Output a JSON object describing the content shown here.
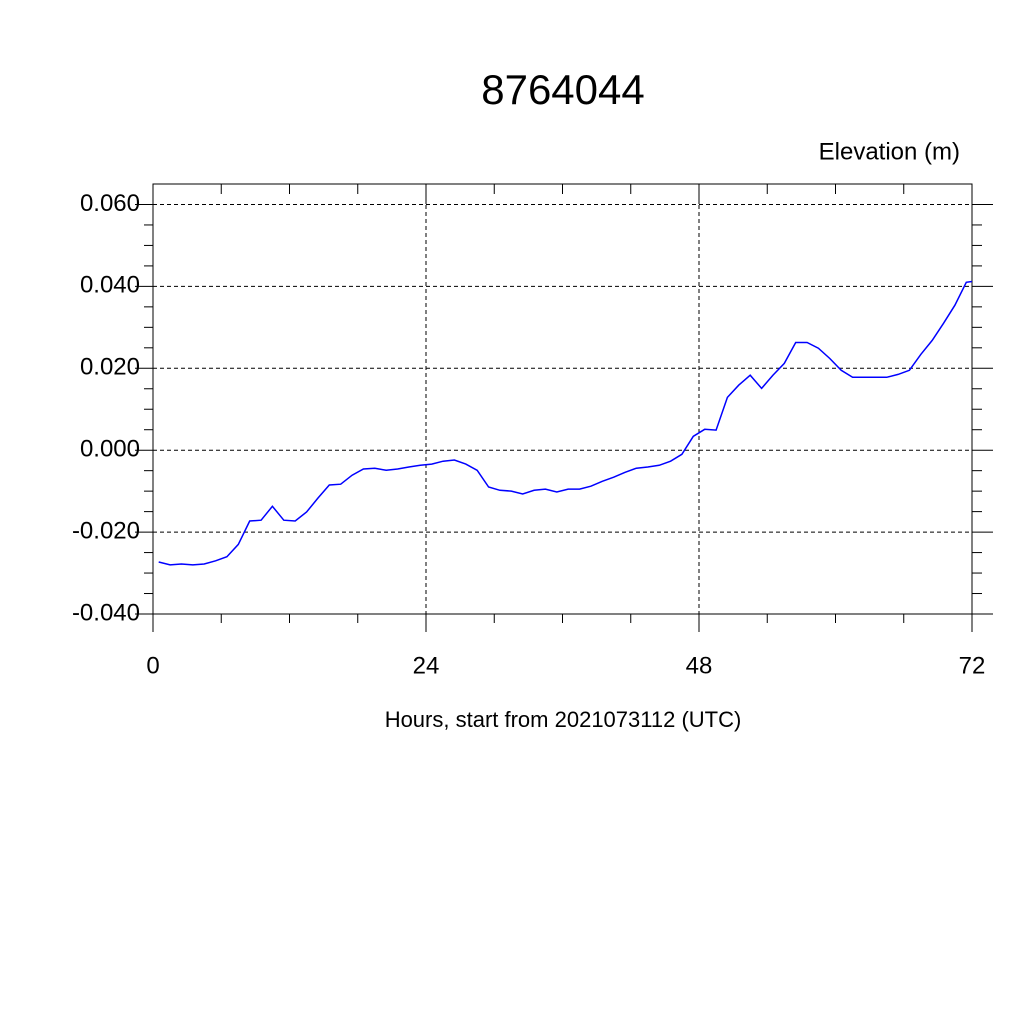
{
  "chart_data": {
    "type": "line",
    "title": "8764044",
    "y_label": "Elevation (m)",
    "x_label": "Hours, start from 2021073112 (UTC)",
    "x": [
      0.5,
      1.5,
      2.5,
      3.5,
      4.5,
      5.5,
      6.5,
      7.5,
      8.5,
      9.5,
      10.5,
      11.5,
      12.5,
      13.5,
      14.5,
      15.5,
      16.5,
      17.5,
      18.5,
      19.5,
      20.5,
      21.5,
      22.5,
      23.5,
      24.5,
      25.5,
      26.5,
      27.5,
      28.5,
      29.5,
      30.5,
      31.5,
      32.5,
      33.5,
      34.5,
      35.5,
      36.5,
      37.5,
      38.5,
      39.5,
      40.5,
      41.5,
      42.5,
      43.5,
      44.5,
      45.5,
      46.5,
      47.5,
      48.5,
      49.5,
      50.5,
      51.5,
      52.5,
      53.5,
      54.5,
      55.5,
      56.5,
      57.5,
      58.5,
      59.5,
      60.5,
      61.5,
      62.5,
      63.5,
      64.5,
      65.5,
      66.5,
      67.5,
      68.5,
      69.5,
      70.5,
      71.5,
      72
    ],
    "series": [
      {
        "name": "Elevation",
        "color": "#0000ff",
        "values": [
          -0.0273,
          -0.028,
          -0.0278,
          -0.028,
          -0.0278,
          -0.027,
          -0.026,
          -0.023,
          -0.0173,
          -0.0171,
          -0.0137,
          -0.0171,
          -0.0173,
          -0.0151,
          -0.0117,
          -0.0085,
          -0.0083,
          -0.0061,
          -0.0046,
          -0.0044,
          -0.0049,
          -0.0046,
          -0.0041,
          -0.0037,
          -0.0034,
          -0.0027,
          -0.0024,
          -0.0034,
          -0.0049,
          -0.009,
          -0.0098,
          -0.01,
          -0.0107,
          -0.0098,
          -0.0095,
          -0.0102,
          -0.0095,
          -0.0095,
          -0.0088,
          -0.0076,
          -0.0066,
          -0.0054,
          -0.0044,
          -0.0041,
          -0.0037,
          -0.0027,
          -0.001,
          0.0034,
          0.0051,
          0.0049,
          0.0129,
          0.0159,
          0.0183,
          0.0151,
          0.0183,
          0.0212,
          0.0263,
          0.0263,
          0.0249,
          0.0224,
          0.0195,
          0.0178,
          0.0178,
          0.0178,
          0.0178,
          0.0185,
          0.0195,
          0.0234,
          0.0268,
          0.031,
          0.0354,
          0.041,
          0.0412
        ]
      }
    ],
    "xlim": [
      0,
      72
    ],
    "ylim": [
      -0.04,
      0.065
    ],
    "xticks": [
      0,
      24,
      48,
      72
    ],
    "x_minor_ticks": [
      6,
      12,
      18,
      30,
      36,
      42,
      54,
      60,
      66
    ],
    "yticks": [
      {
        "value": -0.04,
        "label": "-0.040"
      },
      {
        "value": -0.02,
        "label": "-0.020"
      },
      {
        "value": 0,
        "label": "0.000"
      },
      {
        "value": 0.02,
        "label": "0.020"
      },
      {
        "value": 0.04,
        "label": "0.040"
      },
      {
        "value": 0.06,
        "label": "0.060"
      }
    ],
    "y_minor_ticks": [
      -0.035,
      -0.03,
      -0.025,
      -0.015,
      -0.01,
      -0.005,
      0.005,
      0.01,
      0.015,
      0.025,
      0.03,
      0.035,
      0.045,
      0.05,
      0.055
    ],
    "grid": true
  }
}
